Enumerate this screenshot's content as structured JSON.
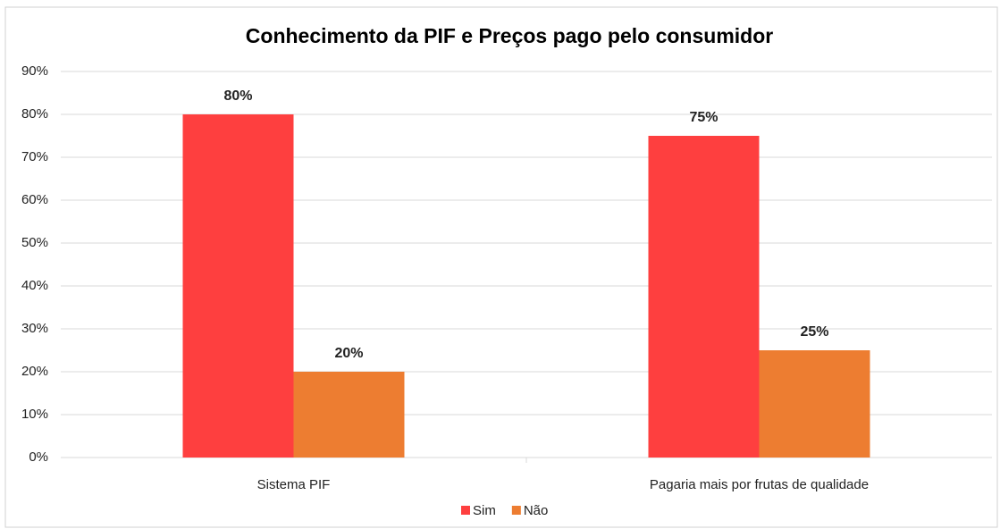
{
  "chart_data": {
    "type": "bar",
    "title": "Conhecimento da PIF e Preços pago pelo consumidor",
    "categories": [
      "Sistema PIF",
      "Pagaria mais por frutas de qualidade"
    ],
    "series": [
      {
        "name": "Sim",
        "color": "#fe3f3f",
        "values": [
          80,
          75
        ],
        "value_labels": [
          "80%",
          "75%"
        ]
      },
      {
        "name": "Não",
        "color": "#ed7d31",
        "values": [
          20,
          25
        ],
        "value_labels": [
          "20%",
          "25%"
        ]
      }
    ],
    "ylim": [
      0,
      90
    ],
    "yticks": [
      {
        "value": 0,
        "label": "0%"
      },
      {
        "value": 10,
        "label": "10%"
      },
      {
        "value": 20,
        "label": "20%"
      },
      {
        "value": 30,
        "label": "30%"
      },
      {
        "value": 40,
        "label": "40%"
      },
      {
        "value": 50,
        "label": "50%"
      },
      {
        "value": 60,
        "label": "60%"
      },
      {
        "value": 70,
        "label": "70%"
      },
      {
        "value": 80,
        "label": "80%"
      },
      {
        "value": 90,
        "label": "90%"
      }
    ],
    "grid": true,
    "legend": "bottom"
  }
}
